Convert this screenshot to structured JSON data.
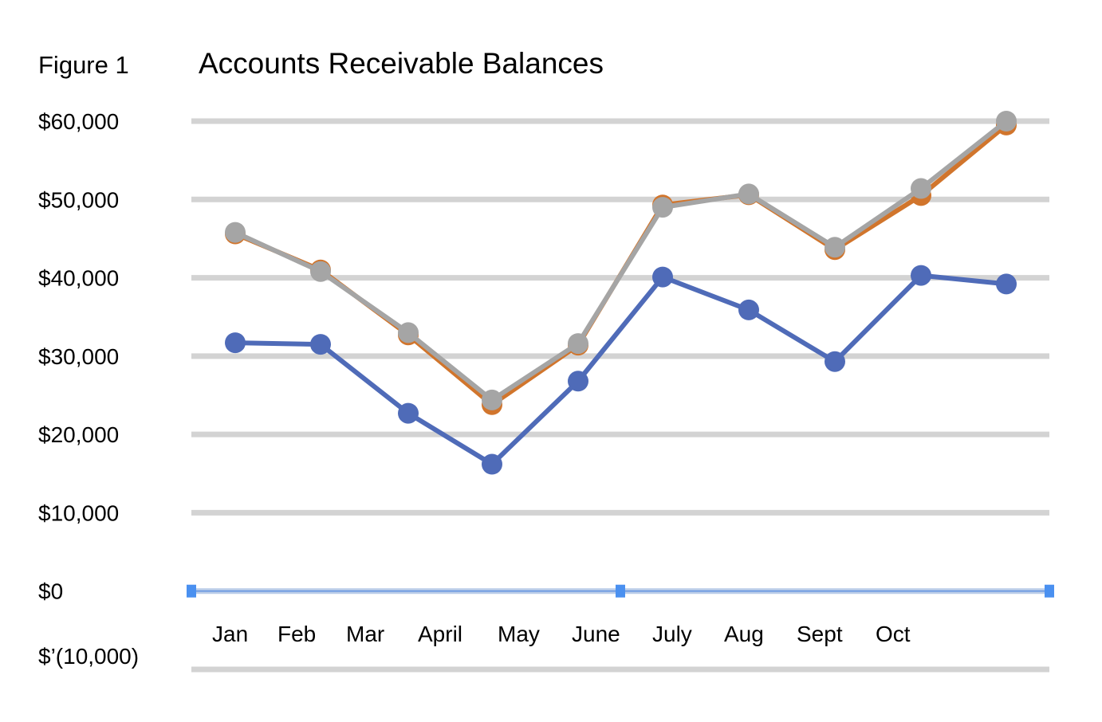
{
  "figure_label": "Figure 1",
  "chart_data": {
    "type": "line",
    "title": "Accounts Receivable Balances",
    "xlabel": "",
    "ylabel": "",
    "ylim": [
      -10000,
      60000
    ],
    "yticks": [
      {
        "value": 60000,
        "label": "$60,000"
      },
      {
        "value": 50000,
        "label": "$50,000"
      },
      {
        "value": 40000,
        "label": "$40,000"
      },
      {
        "value": 30000,
        "label": "$30,000"
      },
      {
        "value": 20000,
        "label": "$20,000"
      },
      {
        "value": 10000,
        "label": "$10,000"
      },
      {
        "value": 0,
        "label": "$0"
      },
      {
        "value": -10000,
        "label": "$’(10,000)"
      }
    ],
    "category_labels": [
      "Jan",
      "Feb",
      "Mar",
      "April",
      "May",
      "June",
      "July",
      "Aug",
      "Sept",
      "Oct"
    ],
    "grid": true,
    "legend": "none",
    "series": [
      {
        "color": "#4f6bb8",
        "values": [
          31700,
          31500,
          22700,
          16200,
          26800,
          40100,
          35900,
          29300,
          40300,
          39200
        ]
      },
      {
        "color": "#d1752c",
        "values": [
          45600,
          41000,
          32700,
          23800,
          31400,
          49300,
          50600,
          43600,
          50500,
          59500
        ]
      },
      {
        "color": "#a5a5a5",
        "values": [
          45800,
          40800,
          33000,
          24400,
          31600,
          49000,
          50700,
          43900,
          51400,
          60000
        ]
      }
    ]
  }
}
